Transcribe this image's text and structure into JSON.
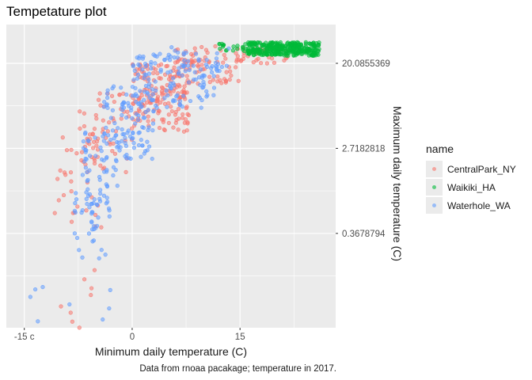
{
  "title": "Tempetature plot",
  "caption": "Data from rnoaa pacakage; temperature in 2017.",
  "chart_data": {
    "type": "scatter",
    "title": "Tempetature plot",
    "xlabel": "Minimum daily temperature (C)",
    "ylabel": "Maximum daily temperature (C)",
    "y_scale": "log",
    "xlim": [
      -17.5,
      28.3
    ],
    "ylim": [
      0.04,
      50
    ],
    "x_ticks": [
      -15,
      0,
      15
    ],
    "x_tick_labels": [
      "-15 c",
      "0",
      "15"
    ],
    "y_ticks": [
      0.3678794,
      2.7182818,
      20.0855369
    ],
    "y_tick_labels": [
      "0.3678794",
      "2.7182818",
      "20.0855369"
    ],
    "grid": true,
    "legend_title": "name",
    "legend_position": "right",
    "series": [
      {
        "name": "CentralPark_NY",
        "color": "#F8766D",
        "clusters": [
          {
            "n": 170,
            "x": [
              0,
              8
            ],
            "y": [
              4,
              20
            ]
          },
          {
            "n": 80,
            "x": [
              6,
              15
            ],
            "y": [
              12,
              30
            ]
          },
          {
            "n": 60,
            "x": [
              -8,
              0
            ],
            "y": [
              1.5,
              10
            ]
          },
          {
            "n": 35,
            "x": [
              -11,
              -4
            ],
            "y": [
              0.4,
              4
            ]
          },
          {
            "n": 30,
            "x": [
              15,
              22
            ],
            "y": [
              20,
              30
            ]
          },
          {
            "n": 8,
            "x": [
              -10,
              -3
            ],
            "y": [
              0.04,
              0.2
            ]
          }
        ]
      },
      {
        "name": "Waikiki_HA",
        "color": "#00BA38",
        "clusters": [
          {
            "n": 330,
            "x": [
              16,
              26
            ],
            "y": [
              24,
              33
            ]
          },
          {
            "n": 20,
            "x": [
              12,
              16
            ],
            "y": [
              26,
              32
            ]
          }
        ]
      },
      {
        "name": "Waterhole_WA",
        "color": "#619CFF",
        "clusters": [
          {
            "n": 120,
            "x": [
              0,
              12
            ],
            "y": [
              7,
              26
            ]
          },
          {
            "n": 110,
            "x": [
              -4,
              3
            ],
            "y": [
              2,
              12
            ]
          },
          {
            "n": 60,
            "x": [
              -7,
              -2
            ],
            "y": [
              0.6,
              4
            ]
          },
          {
            "n": 35,
            "x": [
              -8,
              -3
            ],
            "y": [
              0.2,
              1
            ]
          },
          {
            "n": 25,
            "x": [
              5,
              14
            ],
            "y": [
              15,
              30
            ]
          },
          {
            "n": 8,
            "x": [
              -16,
              -3
            ],
            "y": [
              0.04,
              0.12
            ]
          }
        ]
      }
    ]
  }
}
